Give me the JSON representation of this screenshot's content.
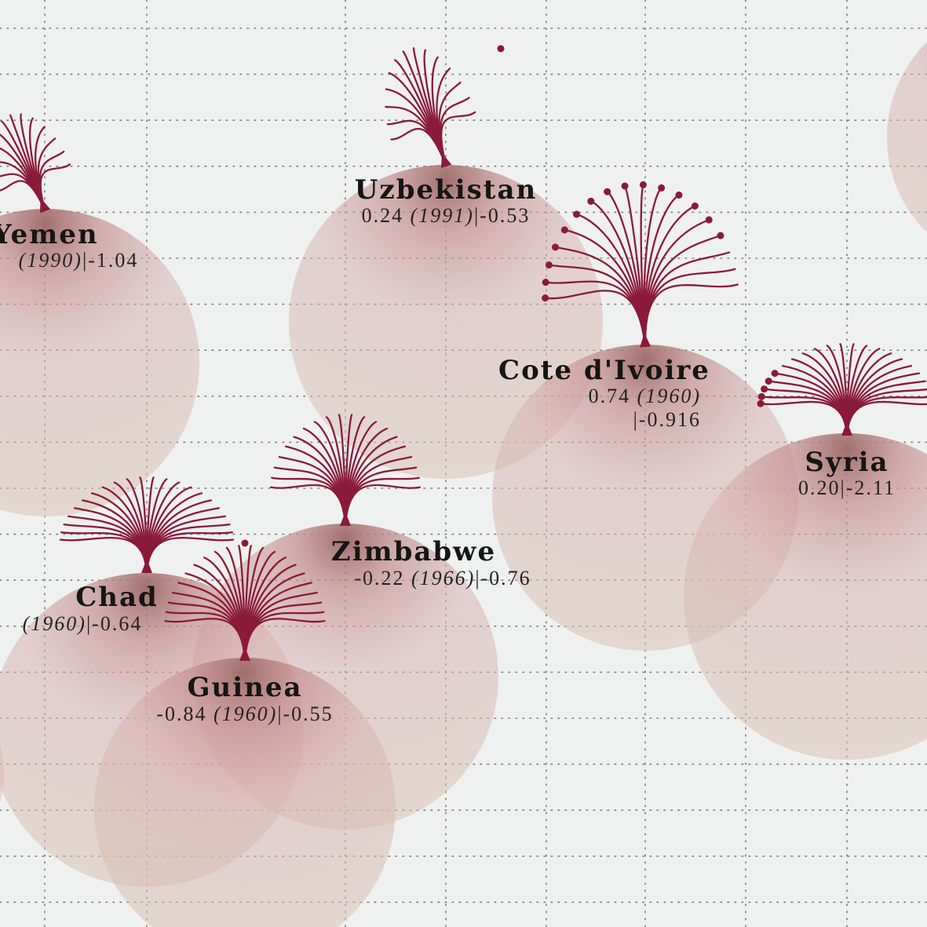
{
  "chart_data": {
    "type": "scatter",
    "title": "",
    "xlabel": "",
    "ylabel": "",
    "grid": true,
    "colors": {
      "background": "#eff0f0",
      "bubble": "#c99f9c",
      "bubble_edge": "#a87874",
      "sprig": "#8a1a3a",
      "grid": "#7d7d7d"
    },
    "points": [
      {
        "name": "Yemen",
        "stats": "(1990)|-1.04",
        "value": null,
        "year": "1990",
        "change": -1.04,
        "bloom": "tuft"
      },
      {
        "name": "Uzbekistan",
        "stats": "0.24 (1991)|-0.53",
        "value": 0.24,
        "year": "1991",
        "change": -0.53,
        "bloom": "tuft"
      },
      {
        "name": "Cote d'Ivoire",
        "stats": "0.74 (1960)",
        "stats2": "|-0.916",
        "value": 0.74,
        "year": "1960",
        "change": -0.916,
        "bloom": "dotted-fan"
      },
      {
        "name": "Syria",
        "stats": "0.20|-2.11",
        "value": 0.2,
        "year": "",
        "change": -2.11,
        "bloom": "fan"
      },
      {
        "name": "Zimbabwe",
        "stats": "-0.22 (1966)|-0.76",
        "value": -0.22,
        "year": "1966",
        "change": -0.76,
        "bloom": "fan"
      },
      {
        "name": "Chad",
        "stats": "(1960)|-0.64",
        "value": null,
        "year": "1960",
        "change": -0.64,
        "bloom": "fan"
      },
      {
        "name": "Guinea",
        "stats": "-0.84 (1960)|-0.55",
        "value": -0.84,
        "year": "1960",
        "change": -0.55,
        "bloom": "fan"
      }
    ]
  }
}
